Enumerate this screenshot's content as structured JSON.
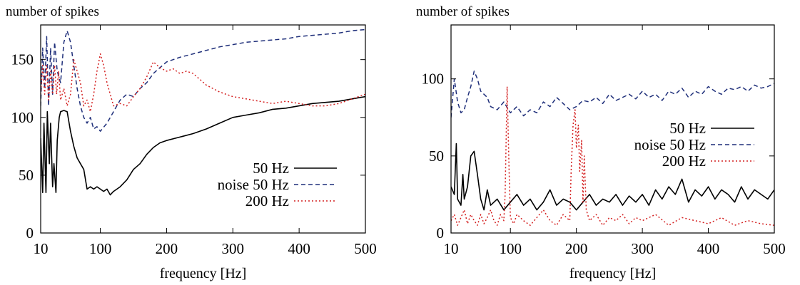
{
  "chart_data": [
    {
      "type": "line",
      "ylabel": "number of spikes",
      "xlabel": "frequency [Hz]",
      "xlim": [
        10,
        500
      ],
      "ylim": [
        0,
        180
      ],
      "xticks": [
        10,
        100,
        200,
        300,
        400,
        500
      ],
      "yticks": [
        0,
        50,
        100,
        150
      ],
      "legend_position": "right",
      "grid": false,
      "series": [
        {
          "name": "50 Hz",
          "color": "#000000",
          "dash": "solid",
          "x": [
            10,
            13,
            15,
            18,
            20,
            23,
            25,
            28,
            30,
            33,
            35,
            38,
            40,
            45,
            50,
            55,
            60,
            65,
            70,
            75,
            80,
            85,
            90,
            95,
            100,
            105,
            110,
            115,
            120,
            125,
            130,
            140,
            150,
            160,
            170,
            180,
            190,
            200,
            220,
            240,
            260,
            280,
            300,
            320,
            340,
            360,
            380,
            400,
            420,
            440,
            460,
            480,
            500
          ],
          "y": [
            82,
            35,
            95,
            35,
            105,
            60,
            95,
            40,
            60,
            35,
            80,
            100,
            105,
            106,
            105,
            88,
            75,
            65,
            60,
            55,
            38,
            40,
            38,
            40,
            38,
            36,
            38,
            33,
            36,
            38,
            40,
            46,
            55,
            60,
            68,
            74,
            78,
            80,
            83,
            86,
            90,
            95,
            100,
            102,
            104,
            107,
            108,
            110,
            112,
            113,
            114,
            116,
            118
          ]
        },
        {
          "name": "noise 50 Hz",
          "color": "#1f2f7a",
          "dash": "6,4",
          "x": [
            10,
            13,
            16,
            19,
            22,
            25,
            28,
            31,
            35,
            40,
            45,
            50,
            55,
            60,
            65,
            70,
            75,
            80,
            85,
            90,
            95,
            100,
            110,
            120,
            130,
            140,
            150,
            160,
            170,
            180,
            190,
            200,
            220,
            240,
            260,
            280,
            300,
            320,
            340,
            360,
            380,
            400,
            420,
            440,
            460,
            480,
            500
          ],
          "y": [
            110,
            160,
            125,
            170,
            110,
            160,
            120,
            165,
            140,
            130,
            165,
            175,
            165,
            145,
            125,
            110,
            100,
            95,
            100,
            90,
            92,
            88,
            95,
            105,
            115,
            120,
            118,
            125,
            130,
            138,
            143,
            148,
            152,
            155,
            158,
            161,
            163,
            165,
            166,
            167,
            168,
            170,
            171,
            172,
            173,
            175,
            176
          ]
        },
        {
          "name": "200 Hz",
          "color": "#d42020",
          "dash": "2,3",
          "x": [
            10,
            13,
            16,
            19,
            22,
            25,
            28,
            31,
            34,
            37,
            40,
            45,
            50,
            55,
            60,
            65,
            70,
            75,
            80,
            85,
            90,
            95,
            100,
            105,
            110,
            120,
            130,
            140,
            150,
            160,
            170,
            180,
            190,
            200,
            210,
            220,
            230,
            240,
            260,
            280,
            300,
            320,
            340,
            360,
            380,
            400,
            420,
            440,
            460,
            480,
            500
          ],
          "y": [
            120,
            145,
            120,
            145,
            115,
            140,
            120,
            145,
            120,
            140,
            115,
            125,
            110,
            120,
            150,
            140,
            130,
            110,
            115,
            105,
            120,
            140,
            155,
            145,
            130,
            110,
            112,
            110,
            118,
            125,
            135,
            148,
            143,
            140,
            142,
            138,
            140,
            138,
            128,
            122,
            118,
            116,
            114,
            112,
            114,
            112,
            110,
            110,
            112,
            116,
            120
          ]
        }
      ]
    },
    {
      "type": "line",
      "ylabel": "number of spikes",
      "xlabel": "frequency [Hz]",
      "xlim": [
        10,
        500
      ],
      "ylim": [
        0,
        135
      ],
      "xticks": [
        10,
        100,
        200,
        300,
        400,
        500
      ],
      "yticks": [
        0,
        50,
        100
      ],
      "legend_position": "right",
      "grid": false,
      "series": [
        {
          "name": "50 Hz",
          "color": "#000000",
          "dash": "solid",
          "x": [
            10,
            15,
            18,
            20,
            25,
            28,
            30,
            35,
            40,
            45,
            50,
            55,
            60,
            65,
            70,
            80,
            90,
            100,
            110,
            120,
            130,
            140,
            150,
            160,
            170,
            180,
            190,
            200,
            210,
            220,
            230,
            240,
            250,
            260,
            270,
            280,
            290,
            300,
            310,
            320,
            330,
            340,
            350,
            360,
            370,
            380,
            390,
            400,
            410,
            420,
            430,
            440,
            450,
            460,
            470,
            480,
            490,
            500
          ],
          "y": [
            30,
            25,
            58,
            22,
            18,
            38,
            22,
            30,
            50,
            53,
            38,
            22,
            15,
            28,
            18,
            22,
            15,
            20,
            25,
            18,
            22,
            15,
            20,
            28,
            18,
            22,
            20,
            15,
            20,
            25,
            18,
            22,
            20,
            25,
            18,
            24,
            20,
            25,
            18,
            28,
            22,
            30,
            25,
            35,
            20,
            28,
            24,
            30,
            22,
            28,
            25,
            20,
            30,
            22,
            28,
            25,
            22,
            28
          ]
        },
        {
          "name": "noise 50 Hz",
          "color": "#1f2f7a",
          "dash": "6,4",
          "x": [
            10,
            15,
            20,
            25,
            30,
            35,
            40,
            45,
            50,
            55,
            60,
            65,
            70,
            80,
            90,
            100,
            110,
            120,
            130,
            140,
            150,
            160,
            170,
            180,
            190,
            200,
            210,
            220,
            230,
            240,
            250,
            260,
            270,
            280,
            290,
            300,
            310,
            320,
            330,
            340,
            350,
            360,
            370,
            380,
            390,
            400,
            410,
            420,
            430,
            440,
            450,
            460,
            470,
            480,
            490,
            500
          ],
          "y": [
            75,
            100,
            85,
            78,
            80,
            88,
            95,
            105,
            100,
            92,
            90,
            88,
            82,
            80,
            85,
            78,
            82,
            76,
            80,
            78,
            85,
            82,
            88,
            84,
            80,
            82,
            86,
            85,
            88,
            84,
            90,
            86,
            88,
            90,
            87,
            92,
            88,
            90,
            86,
            92,
            90,
            94,
            88,
            92,
            90,
            95,
            92,
            90,
            94,
            93,
            95,
            92,
            96,
            94,
            95,
            97
          ]
        },
        {
          "name": "200 Hz",
          "color": "#d42020",
          "dash": "2,3",
          "x": [
            10,
            15,
            20,
            25,
            30,
            35,
            40,
            45,
            50,
            55,
            60,
            65,
            70,
            75,
            80,
            85,
            90,
            92,
            95,
            98,
            100,
            105,
            110,
            120,
            130,
            140,
            150,
            160,
            170,
            180,
            190,
            192,
            195,
            198,
            200,
            203,
            205,
            208,
            210,
            212,
            215,
            220,
            230,
            240,
            250,
            260,
            270,
            280,
            290,
            300,
            320,
            340,
            360,
            380,
            400,
            420,
            440,
            460,
            480,
            500
          ],
          "y": [
            8,
            12,
            5,
            10,
            15,
            6,
            12,
            8,
            5,
            12,
            6,
            10,
            15,
            8,
            5,
            12,
            8,
            25,
            95,
            40,
            10,
            6,
            12,
            8,
            5,
            10,
            15,
            8,
            5,
            12,
            8,
            40,
            70,
            80,
            55,
            70,
            40,
            60,
            20,
            50,
            15,
            8,
            12,
            5,
            10,
            8,
            12,
            6,
            10,
            8,
            12,
            5,
            10,
            8,
            6,
            10,
            5,
            8,
            6,
            5
          ]
        }
      ]
    }
  ]
}
